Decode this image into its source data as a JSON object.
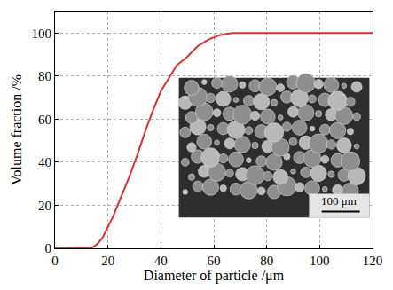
{
  "chart_data": {
    "type": "line",
    "x_label": "Diameter of particle /μm",
    "y_label": "Volume fraction /%",
    "x": [
      0,
      10,
      14,
      16,
      18,
      20,
      22,
      25,
      28,
      31,
      34,
      37,
      40,
      43,
      46,
      50,
      54,
      58,
      62,
      67,
      80,
      100,
      120
    ],
    "values": [
      0,
      0,
      0.3,
      2,
      5,
      10,
      15,
      24,
      33,
      43,
      54,
      64,
      73,
      79,
      85,
      89,
      94,
      97,
      99,
      100,
      100,
      100,
      100
    ],
    "color": "#e03030",
    "line_style": "solid",
    "xlim": [
      0,
      120
    ],
    "xticks": [
      0,
      20,
      40,
      60,
      80,
      100,
      120
    ],
    "ylim": [
      0,
      110
    ],
    "yticks": [
      0,
      20,
      40,
      60,
      80,
      100
    ],
    "grid": true,
    "annotations": [
      {
        "text": "100 μm"
      }
    ]
  }
}
